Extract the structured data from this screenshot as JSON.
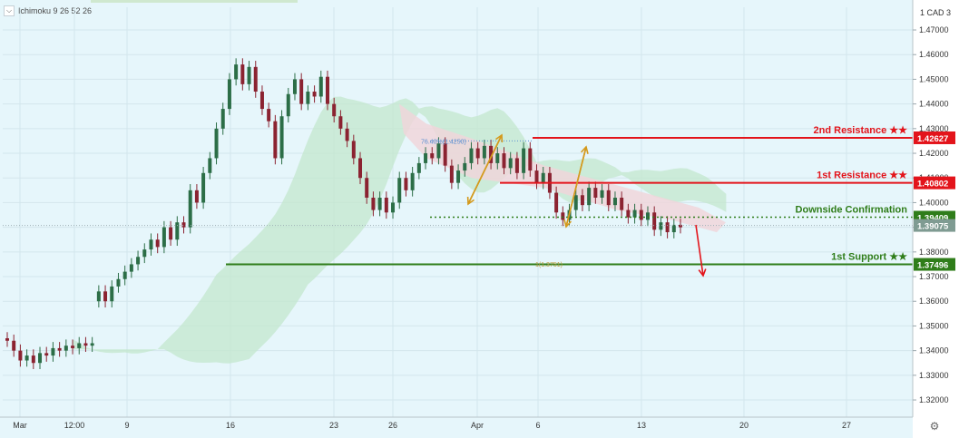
{
  "indicator": {
    "label": "Ichimoku 9 26 52 26",
    "collapse_icon": "chevron-down-icon"
  },
  "axis": {
    "currency": "CAD"
  },
  "colors": {
    "background": "#e6f6fb",
    "up_candle": "#2c6e47",
    "down_candle": "#8b2331",
    "cloud_bull": "#c3e7cd",
    "cloud_bear": "#f1d5da",
    "resistance": "#e3141b",
    "support": "#2f7d1a",
    "arrow_gold": "#d49a1d"
  },
  "chart_data": {
    "type": "candlestick",
    "symbol_quote": "CAD",
    "indicator": "Ichimoku 9 26 52 26",
    "ylim": [
      1.3145,
      1.4792
    ],
    "y_ticks": [
      1.32,
      1.33,
      1.34,
      1.35,
      1.36,
      1.37,
      1.38,
      1.39,
      1.4,
      1.41,
      1.42,
      1.43,
      1.44,
      1.45,
      1.46,
      1.47
    ],
    "x_ticks": [
      "Mar",
      "12:00",
      "9",
      "16",
      "23",
      "26",
      "Apr",
      "6",
      "13",
      "20",
      "27"
    ],
    "grid": true,
    "candles_approx": [
      [
        1.345,
        1.344
      ],
      [
        1.344,
        1.34
      ],
      [
        1.34,
        1.336
      ],
      [
        1.336,
        1.338
      ],
      [
        1.338,
        1.335
      ],
      [
        1.335,
        1.339
      ],
      [
        1.339,
        1.338
      ],
      [
        1.338,
        1.341
      ],
      [
        1.341,
        1.34
      ],
      [
        1.34,
        1.342
      ],
      [
        1.342,
        1.341
      ],
      [
        1.341,
        1.343
      ],
      [
        1.343,
        1.342
      ],
      [
        1.342,
        1.343
      ],
      [
        1.36,
        1.364
      ],
      [
        1.364,
        1.36
      ],
      [
        1.36,
        1.366
      ],
      [
        1.366,
        1.369
      ],
      [
        1.369,
        1.372
      ],
      [
        1.372,
        1.375
      ],
      [
        1.375,
        1.378
      ],
      [
        1.378,
        1.381
      ],
      [
        1.381,
        1.385
      ],
      [
        1.385,
        1.382
      ],
      [
        1.382,
        1.39
      ],
      [
        1.39,
        1.385
      ],
      [
        1.385,
        1.392
      ],
      [
        1.392,
        1.39
      ],
      [
        1.39,
        1.405
      ],
      [
        1.405,
        1.4
      ],
      [
        1.4,
        1.412
      ],
      [
        1.412,
        1.418
      ],
      [
        1.418,
        1.43
      ],
      [
        1.43,
        1.438
      ],
      [
        1.438,
        1.45
      ],
      [
        1.45,
        1.456
      ],
      [
        1.456,
        1.448
      ],
      [
        1.448,
        1.455
      ],
      [
        1.455,
        1.445
      ],
      [
        1.445,
        1.438
      ],
      [
        1.438,
        1.433
      ],
      [
        1.433,
        1.418
      ],
      [
        1.418,
        1.435
      ],
      [
        1.435,
        1.444
      ],
      [
        1.444,
        1.45
      ],
      [
        1.45,
        1.44
      ],
      [
        1.44,
        1.445
      ],
      [
        1.445,
        1.443
      ],
      [
        1.443,
        1.451
      ],
      [
        1.451,
        1.44
      ],
      [
        1.44,
        1.435
      ],
      [
        1.435,
        1.43
      ],
      [
        1.43,
        1.425
      ],
      [
        1.425,
        1.418
      ],
      [
        1.418,
        1.41
      ],
      [
        1.41,
        1.402
      ],
      [
        1.402,
        1.397
      ],
      [
        1.397,
        1.402
      ],
      [
        1.402,
        1.396
      ],
      [
        1.396,
        1.4
      ],
      [
        1.4,
        1.41
      ],
      [
        1.41,
        1.405
      ],
      [
        1.405,
        1.412
      ],
      [
        1.412,
        1.416
      ],
      [
        1.416,
        1.42
      ],
      [
        1.42,
        1.418
      ],
      [
        1.418,
        1.424
      ],
      [
        1.424,
        1.415
      ],
      [
        1.415,
        1.408
      ],
      [
        1.408,
        1.413
      ],
      [
        1.413,
        1.416
      ],
      [
        1.416,
        1.422
      ],
      [
        1.422,
        1.418
      ],
      [
        1.418,
        1.423
      ],
      [
        1.423,
        1.416
      ],
      [
        1.416,
        1.42
      ],
      [
        1.42,
        1.414
      ],
      [
        1.414,
        1.418
      ],
      [
        1.418,
        1.412
      ],
      [
        1.412,
        1.422
      ],
      [
        1.422,
        1.413
      ],
      [
        1.413,
        1.408
      ],
      [
        1.408,
        1.412
      ],
      [
        1.412,
        1.404
      ],
      [
        1.404,
        1.396
      ],
      [
        1.396,
        1.393
      ],
      [
        1.393,
        1.397
      ],
      [
        1.397,
        1.403
      ],
      [
        1.403,
        1.399
      ],
      [
        1.399,
        1.406
      ],
      [
        1.406,
        1.402
      ],
      [
        1.402,
        1.405
      ],
      [
        1.405,
        1.399
      ],
      [
        1.399,
        1.402
      ],
      [
        1.402,
        1.397
      ],
      [
        1.397,
        1.394
      ],
      [
        1.394,
        1.397
      ],
      [
        1.397,
        1.393
      ],
      [
        1.393,
        1.396
      ],
      [
        1.396,
        1.389
      ],
      [
        1.389,
        1.392
      ],
      [
        1.392,
        1.388
      ],
      [
        1.388,
        1.391
      ],
      [
        1.391,
        1.39
      ]
    ],
    "levels": [
      {
        "name": "2nd Resistance ★★",
        "value": 1.42627,
        "value_label": "1.42627",
        "style": "solid",
        "color": "#e3141b"
      },
      {
        "name": "1st Resistance ★★",
        "value": 1.40802,
        "value_label": "1.40802",
        "style": "solid",
        "color": "#e3141b"
      },
      {
        "name": "Downside Confirmation",
        "value": 1.39409,
        "value_label": "1.39409",
        "style": "dotted",
        "color": "#2f7d1a"
      },
      {
        "name": "1st Support ★★",
        "value": 1.37496,
        "value_label": "1.37496",
        "style": "solid",
        "color": "#2f7d1a"
      }
    ],
    "last_price": {
      "value": 1.39075,
      "value_label": "1.39075"
    },
    "annotations": [
      {
        "text": "76.40%(1.4250)",
        "value": 1.425
      },
      {
        "text": "1(1.3751)",
        "value": 1.3751
      }
    ]
  }
}
